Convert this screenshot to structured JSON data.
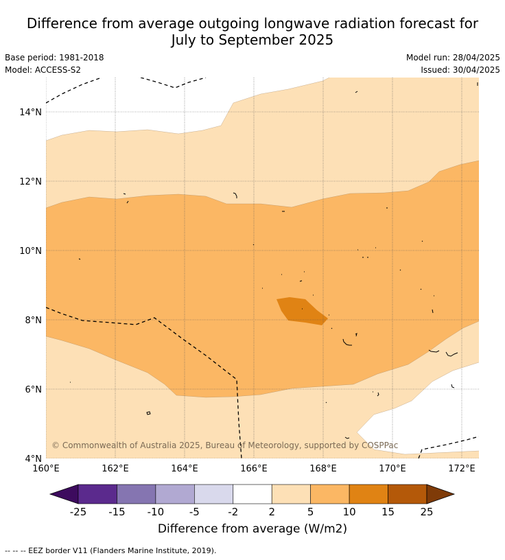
{
  "title_line1": "Difference from average outgoing longwave radiation forecast for",
  "title_line2": "July to September 2025",
  "base_period": "Base period: 1981-2018",
  "model": "Model: ACCESS-S2",
  "model_run": "Model run: 28/04/2025",
  "issued": "Issued: 30/04/2025",
  "lat_ticks": [
    "14°N",
    "12°N",
    "10°N",
    "8°N",
    "6°N",
    "4°N"
  ],
  "lon_ticks": [
    "160°E",
    "162°E",
    "164°E",
    "166°E",
    "168°E",
    "170°E",
    "172°E"
  ],
  "copyright": "© Commonwealth of Australia 2025, Bureau of Meteorology, supported by COSPPac",
  "colorbar": {
    "ticks": [
      "-25",
      "-15",
      "-10",
      "-5",
      "-2",
      "2",
      "5",
      "10",
      "15",
      "25"
    ],
    "colors": [
      "#3d0b5e",
      "#5b2a8d",
      "#8575b1",
      "#b1a9d2",
      "#d9d9ec",
      "#ffffff",
      "#fde0b6",
      "#fbb764",
      "#e08314",
      "#b45909",
      "#7f3b08"
    ],
    "label": "Difference from average (W/m2)"
  },
  "footer": "--  --  -- EEZ border V11 (Flanders Marine Institute, 2019)."
}
